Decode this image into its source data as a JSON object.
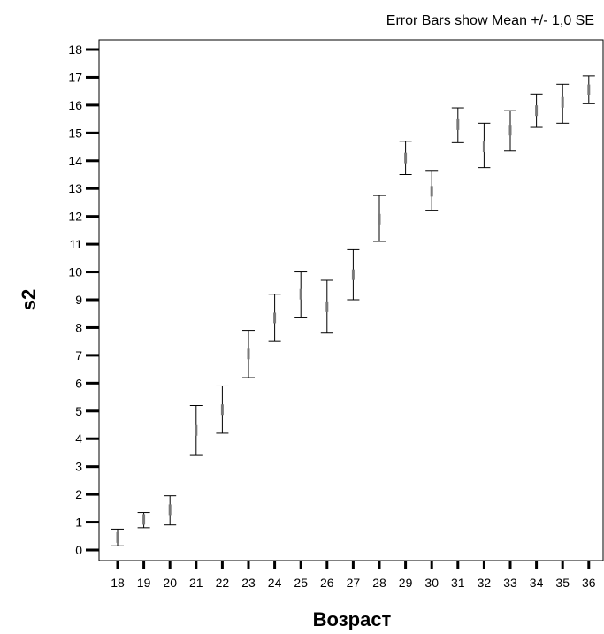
{
  "chart_data": {
    "type": "errorbar",
    "annotation": "Error Bars show  Mean +/- 1,0 SE",
    "xlabel": "Возраст",
    "ylabel": "s2",
    "ylim": [
      0,
      18
    ],
    "yticks": [
      0,
      1,
      2,
      3,
      4,
      5,
      6,
      7,
      8,
      9,
      10,
      11,
      12,
      13,
      14,
      15,
      16,
      17,
      18
    ],
    "categories": [
      "18",
      "19",
      "20",
      "21",
      "22",
      "23",
      "24",
      "25",
      "26",
      "27",
      "28",
      "29",
      "30",
      "31",
      "32",
      "33",
      "34",
      "35",
      "36"
    ],
    "points": [
      {
        "x": "18",
        "mean": 0.45,
        "lower": 0.15,
        "upper": 0.75
      },
      {
        "x": "19",
        "mean": 1.1,
        "lower": 0.8,
        "upper": 1.35
      },
      {
        "x": "20",
        "mean": 1.45,
        "lower": 0.9,
        "upper": 1.95
      },
      {
        "x": "21",
        "mean": 4.3,
        "lower": 3.4,
        "upper": 5.2
      },
      {
        "x": "22",
        "mean": 5.05,
        "lower": 4.2,
        "upper": 5.9
      },
      {
        "x": "23",
        "mean": 7.05,
        "lower": 6.2,
        "upper": 7.9
      },
      {
        "x": "24",
        "mean": 8.35,
        "lower": 7.5,
        "upper": 9.2
      },
      {
        "x": "25",
        "mean": 9.2,
        "lower": 8.35,
        "upper": 10.0
      },
      {
        "x": "26",
        "mean": 8.75,
        "lower": 7.8,
        "upper": 9.7
      },
      {
        "x": "27",
        "mean": 9.9,
        "lower": 9.0,
        "upper": 10.8
      },
      {
        "x": "28",
        "mean": 11.9,
        "lower": 11.1,
        "upper": 12.75
      },
      {
        "x": "29",
        "mean": 14.1,
        "lower": 13.5,
        "upper": 14.7
      },
      {
        "x": "30",
        "mean": 12.9,
        "lower": 12.2,
        "upper": 13.65
      },
      {
        "x": "31",
        "mean": 15.3,
        "lower": 14.65,
        "upper": 15.9
      },
      {
        "x": "32",
        "mean": 14.5,
        "lower": 13.75,
        "upper": 15.35
      },
      {
        "x": "33",
        "mean": 15.1,
        "lower": 14.35,
        "upper": 15.8
      },
      {
        "x": "34",
        "mean": 15.8,
        "lower": 15.2,
        "upper": 16.4
      },
      {
        "x": "35",
        "mean": 16.1,
        "lower": 15.35,
        "upper": 16.75
      },
      {
        "x": "36",
        "mean": 16.55,
        "lower": 16.05,
        "upper": 17.05
      }
    ]
  }
}
